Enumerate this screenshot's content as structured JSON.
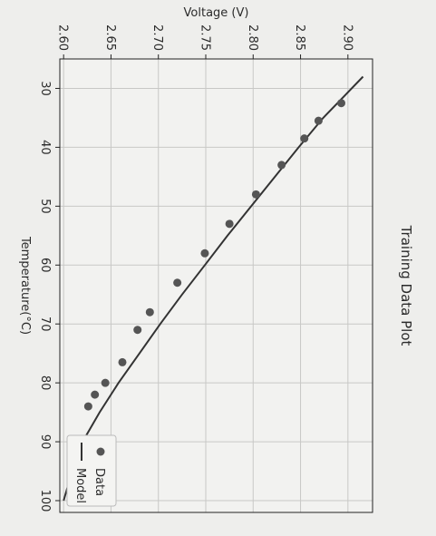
{
  "chart_data": {
    "type": "scatter",
    "title": "Training Data Plot",
    "xlabel": "Temperature(°C)",
    "ylabel": "Voltage (V)",
    "xlim": [
      25,
      102
    ],
    "ylim": [
      2.596,
      2.926
    ],
    "x_ticks": [
      "30",
      "40",
      "50",
      "60",
      "70",
      "80",
      "90",
      "100"
    ],
    "y_ticks": [
      "2.60",
      "2.65",
      "2.70",
      "2.75",
      "2.80",
      "2.85",
      "2.90"
    ],
    "x_tick_values": [
      30,
      40,
      50,
      60,
      70,
      80,
      90,
      100
    ],
    "y_tick_values": [
      2.6,
      2.65,
      2.7,
      2.75,
      2.8,
      2.85,
      2.9
    ],
    "grid": true,
    "legend_position": "bottom-right",
    "series": [
      {
        "name": "Data",
        "kind": "points",
        "color": "#555555",
        "x": [
          32.5,
          35.5,
          38.5,
          43,
          48,
          53,
          58,
          63,
          68,
          71,
          76.5,
          80,
          82,
          84,
          92
        ],
        "y": [
          2.893,
          2.869,
          2.854,
          2.83,
          2.803,
          2.775,
          2.749,
          2.72,
          2.691,
          2.678,
          2.662,
          2.644,
          2.633,
          2.626,
          2.619
        ]
      },
      {
        "name": "Model",
        "kind": "line",
        "color": "#333333",
        "x": [
          28,
          35,
          40,
          45,
          50,
          55,
          60,
          65,
          70,
          75,
          80,
          85,
          90,
          95,
          100
        ],
        "y": [
          2.916,
          2.874,
          2.848,
          2.823,
          2.798,
          2.773,
          2.749,
          2.725,
          2.702,
          2.68,
          2.658,
          2.638,
          2.62,
          2.609,
          2.6
        ]
      }
    ]
  }
}
